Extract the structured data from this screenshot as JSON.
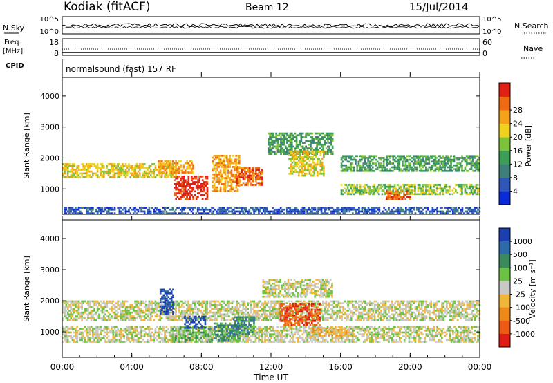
{
  "header": {
    "title": "Kodiak (fitACF)",
    "beam": "Beam 12",
    "date": "15/Jul/2014"
  },
  "params": {
    "nsky_label": "N.Sky",
    "nsky_ticks": [
      "10^5",
      "10^0"
    ],
    "nsearch_label": "N.Search",
    "nsearch_ticks": [
      "10^5",
      "10^0"
    ],
    "freq_label": "Freq.",
    "freq_unit": "[MHz]",
    "freq_ticks": [
      "18",
      "8"
    ],
    "nave_label": "Nave",
    "nave_ticks": [
      "60",
      "0"
    ],
    "cpid_label": "CPID",
    "cpid_value": "normalsound (fast) 157 RF"
  },
  "colors": {
    "power": [
      "#0a2bd6",
      "#2f56b8",
      "#3f7f7a",
      "#3c9e55",
      "#7cc23a",
      "#f0d21e",
      "#f5a11a",
      "#ef6a12",
      "#e02014"
    ],
    "velocity": [
      "#1c3fb0",
      "#2d6aa8",
      "#3a8a5c",
      "#6cc243",
      "#c8c8c4",
      "#f0b63a",
      "#ee8a18",
      "#ec5a14",
      "#e01c18"
    ]
  },
  "chart_data": [
    {
      "type": "heatmap",
      "name": "power",
      "xlabel": "Time UT",
      "ylabel": "Slant Range [km]",
      "x_ticks": [
        "00:00",
        "04:00",
        "08:00",
        "12:00",
        "16:00",
        "20:00",
        "00:00"
      ],
      "y_ticks": [
        1000,
        2000,
        3000,
        4000
      ],
      "xlim_hours": [
        0,
        24
      ],
      "ylim_km": [
        180,
        4600
      ],
      "colorbar_label": "Power [dB]",
      "colorbar_ticks": [
        "4",
        "8",
        "12",
        "16",
        "20",
        "24",
        "28"
      ],
      "bands": [
        {
          "t0": 0.0,
          "t1": 6.5,
          "r0": 1350,
          "r1": 1800,
          "level": 5
        },
        {
          "t0": 5.5,
          "t1": 7.5,
          "r0": 1500,
          "r1": 1900,
          "level": 6
        },
        {
          "t0": 6.4,
          "t1": 8.3,
          "r0": 650,
          "r1": 1400,
          "level": 8
        },
        {
          "t0": 8.6,
          "t1": 10.2,
          "r0": 900,
          "r1": 2100,
          "level": 6
        },
        {
          "t0": 10.0,
          "t1": 11.5,
          "r0": 1100,
          "r1": 1700,
          "level": 7
        },
        {
          "t0": 11.8,
          "t1": 15.5,
          "r0": 2100,
          "r1": 2800,
          "level": 3
        },
        {
          "t0": 13.0,
          "t1": 15.0,
          "r0": 1400,
          "r1": 2200,
          "level": 5
        },
        {
          "t0": 16.0,
          "t1": 24.0,
          "r0": 1550,
          "r1": 2050,
          "level": 3
        },
        {
          "t0": 16.0,
          "t1": 24.0,
          "r0": 800,
          "r1": 1150,
          "level": 4
        },
        {
          "t0": 18.6,
          "t1": 20.0,
          "r0": 650,
          "r1": 900,
          "level": 7
        },
        {
          "t0": 0.0,
          "t1": 24.0,
          "r0": 180,
          "r1": 420,
          "level": 1
        }
      ]
    },
    {
      "type": "heatmap",
      "name": "velocity",
      "xlabel": "Time UT",
      "ylabel": "Slant Range [km]",
      "x_ticks": [
        "00:00",
        "04:00",
        "08:00",
        "12:00",
        "16:00",
        "20:00",
        "00:00"
      ],
      "y_ticks": [
        1000,
        2000,
        3000,
        4000
      ],
      "xlim_hours": [
        0,
        24
      ],
      "ylim_km": [
        180,
        4600
      ],
      "colorbar_label": "Velocity [m s⁻¹]",
      "colorbar_ticks": [
        "1000",
        "500",
        "100",
        "25",
        "-25",
        "-100",
        "-500",
        "-1000"
      ],
      "bands": [
        {
          "t0": 0.0,
          "t1": 24.0,
          "r0": 1350,
          "r1": 2000,
          "level": 4
        },
        {
          "t0": 0.0,
          "t1": 24.0,
          "r0": 650,
          "r1": 1150,
          "level": 4
        },
        {
          "t0": 6.3,
          "t1": 8.6,
          "r0": 650,
          "r1": 1150,
          "level": 3
        },
        {
          "t0": 7.0,
          "t1": 8.2,
          "r0": 1100,
          "r1": 1500,
          "level": 0
        },
        {
          "t0": 8.7,
          "t1": 10.2,
          "r0": 700,
          "r1": 1250,
          "level": 2
        },
        {
          "t0": 9.8,
          "t1": 11.0,
          "r0": 900,
          "r1": 1500,
          "level": 2
        },
        {
          "t0": 12.5,
          "t1": 14.8,
          "r0": 1200,
          "r1": 1900,
          "level": 7
        },
        {
          "t0": 14.3,
          "t1": 16.5,
          "r0": 850,
          "r1": 1100,
          "level": 5
        },
        {
          "t0": 11.5,
          "t1": 15.5,
          "r0": 2100,
          "r1": 2700,
          "level": 4
        },
        {
          "t0": 5.6,
          "t1": 6.4,
          "r0": 1550,
          "r1": 2350,
          "level": 0
        }
      ]
    }
  ]
}
